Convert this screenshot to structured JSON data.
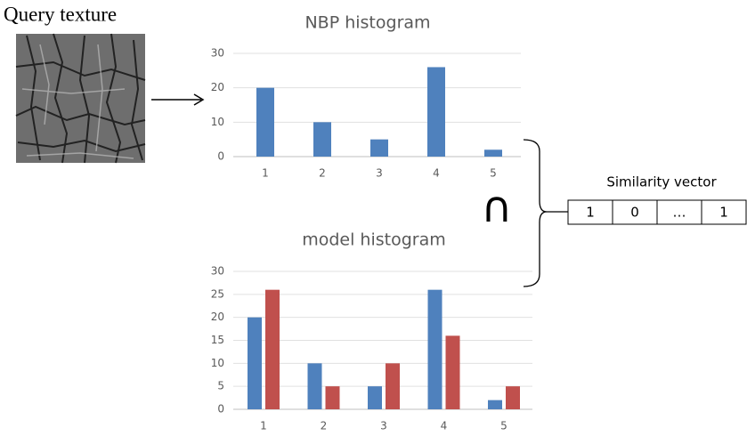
{
  "query_label": "Query texture",
  "similarity": {
    "title": "Similarity vector",
    "cells": [
      "1",
      "0",
      "…",
      "1"
    ]
  },
  "operator": "∩",
  "chart_data": [
    {
      "type": "bar",
      "title": "NBP histogram",
      "categories": [
        "1",
        "2",
        "3",
        "4",
        "5"
      ],
      "series": [
        {
          "color": "#4f81bd",
          "values": [
            20,
            10,
            5,
            26,
            2
          ]
        }
      ],
      "ylim": [
        0,
        30
      ],
      "yticks": [
        0,
        10,
        20,
        30
      ],
      "grid": true
    },
    {
      "type": "bar",
      "title": "model histogram",
      "categories": [
        "1",
        "2",
        "3",
        "4",
        "5"
      ],
      "series": [
        {
          "color": "#4f81bd",
          "values": [
            20,
            10,
            5,
            26,
            2
          ]
        },
        {
          "color": "#c0504d",
          "values": [
            26,
            5,
            10,
            16,
            5
          ]
        }
      ],
      "ylim": [
        0,
        30
      ],
      "yticks": [
        0,
        5,
        10,
        15,
        20,
        25,
        30
      ],
      "grid": true
    }
  ]
}
